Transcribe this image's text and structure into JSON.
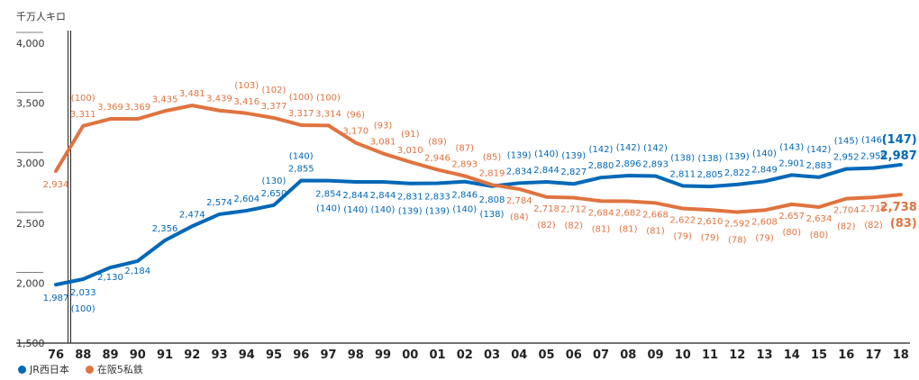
{
  "chart_data": {
    "type": "line",
    "unit_label": "千万人キロ",
    "x": [
      "76",
      "88",
      "89",
      "90",
      "91",
      "92",
      "93",
      "94",
      "95",
      "96",
      "97",
      "98",
      "99",
      "00",
      "01",
      "02",
      "03",
      "04",
      "05",
      "06",
      "07",
      "08",
      "09",
      "10",
      "11",
      "12",
      "13",
      "14",
      "15",
      "16",
      "17",
      "18"
    ],
    "ylim": [
      1500,
      4000
    ],
    "yticks": [
      "1,500",
      "2,000",
      "2,500",
      "3,000",
      "3,500",
      "4,000"
    ],
    "ytick_values": [
      1500,
      2000,
      2500,
      3000,
      3500,
      4000
    ],
    "legend_position": "bottom-left",
    "series": [
      {
        "name": "JR西日本",
        "color": "#0068b7",
        "values": [
          1987,
          2033,
          2130,
          2184,
          2356,
          2474,
          2574,
          2604,
          2650,
          2855,
          2854,
          2844,
          2844,
          2831,
          2833,
          2846,
          2808,
          2834,
          2844,
          2827,
          2880,
          2896,
          2893,
          2811,
          2805,
          2822,
          2849,
          2901,
          2883,
          2952,
          2959,
          2987
        ],
        "value_labels": [
          "1,987",
          "2,033",
          "2,130",
          "2,184",
          "2,356",
          "2,474",
          "2,574",
          "2,604",
          "2,650",
          "2,855",
          "2,854",
          "2,844",
          "2,844",
          "2,831",
          "2,833",
          "2,846",
          "2,808",
          "2,834",
          "2,844",
          "2,827",
          "2,880",
          "2,896",
          "2,893",
          "2,811",
          "2,805",
          "2,822",
          "2,849",
          "2,901",
          "2,883",
          "2,952",
          "2,959",
          "2,987"
        ],
        "index_labels": [
          "",
          "(100)",
          "",
          "",
          "",
          "",
          "",
          "",
          "(130)",
          "(140)",
          "(140)",
          "(140)",
          "(140)",
          "(139)",
          "(139)",
          "(140)",
          "(138)",
          "(139)",
          "(140)",
          "(139)",
          "(142)",
          "(142)",
          "(142)",
          "(138)",
          "(138)",
          "(139)",
          "(140)",
          "(143)",
          "(142)",
          "(145)",
          "(146)",
          "(147)"
        ]
      },
      {
        "name": "在阪5私鉄",
        "color": "#e0733f",
        "values": [
          2934,
          3311,
          3369,
          3369,
          3435,
          3481,
          3439,
          3416,
          3377,
          3317,
          3314,
          3170,
          3081,
          3010,
          2946,
          2893,
          2819,
          2784,
          2718,
          2712,
          2684,
          2682,
          2668,
          2622,
          2610,
          2592,
          2608,
          2657,
          2634,
          2704,
          2715,
          2738
        ],
        "value_labels": [
          "2,934",
          "3,311",
          "3,369",
          "3,369",
          "3,435",
          "3,481",
          "3,439",
          "3,416",
          "3,377",
          "3,317",
          "3,314",
          "3,170",
          "3,081",
          "3,010",
          "2,946",
          "2,893",
          "2,819",
          "2,784",
          "2,718",
          "2,712",
          "2,684",
          "2,682",
          "2,668",
          "2,622",
          "2,610",
          "2,592",
          "2,608",
          "2,657",
          "2,634",
          "2,704",
          "2,715",
          "2,738"
        ],
        "index_labels": [
          "",
          "(100)",
          "",
          "",
          "",
          "",
          "",
          "(103)",
          "(102)",
          "(100)",
          "(100)",
          "(96)",
          "(93)",
          "(91)",
          "(89)",
          "(87)",
          "(85)",
          "(84)",
          "(82)",
          "(82)",
          "(81)",
          "(81)",
          "(81)",
          "(79)",
          "(79)",
          "(78)",
          "(79)",
          "(80)",
          "(80)",
          "(82)",
          "(82)",
          "(83)"
        ]
      }
    ]
  }
}
